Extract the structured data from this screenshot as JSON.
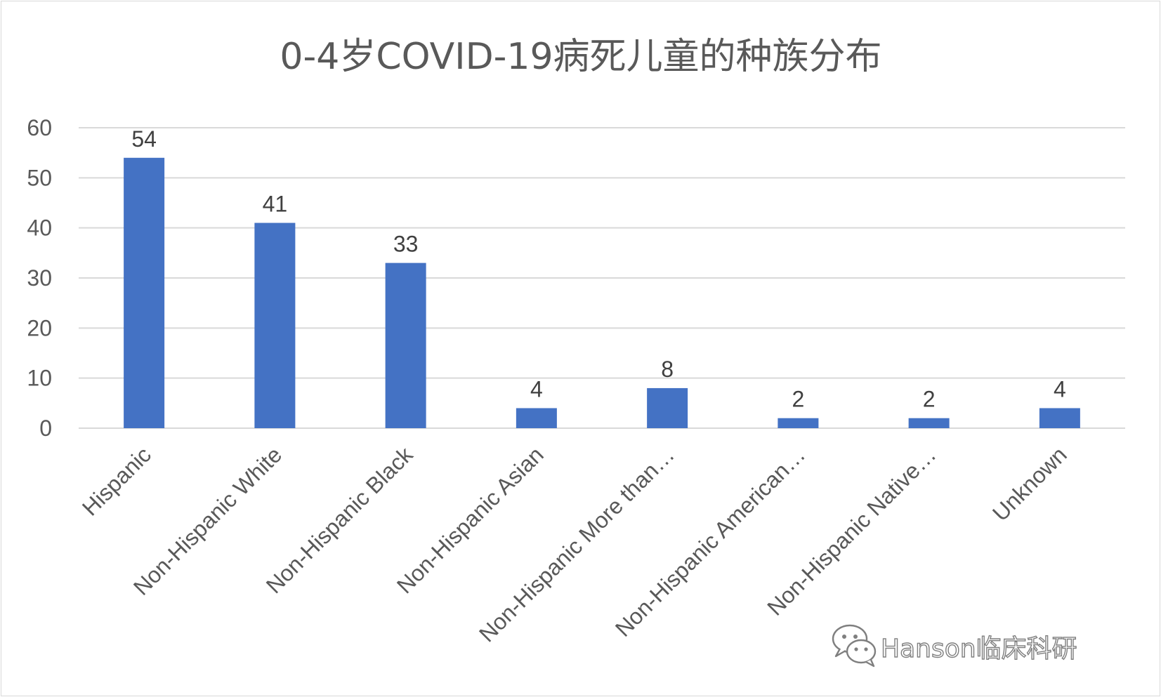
{
  "chart_data": {
    "type": "bar",
    "title": "0-4岁COVID-19病死儿童的种族分布",
    "categories": [
      "Hispanic",
      "Non-Hispanic White",
      "Non-Hispanic Black",
      "Non-Hispanic Asian",
      "Non-Hispanic More than…",
      "Non-Hispanic American…",
      "Non-Hispanic Native…",
      "Unknown"
    ],
    "values": [
      54,
      41,
      33,
      4,
      8,
      2,
      2,
      4
    ],
    "data_labels": [
      "54",
      "41",
      "33",
      "4",
      "8",
      "2",
      "2",
      "4"
    ],
    "yticks": [
      "0",
      "10",
      "20",
      "30",
      "40",
      "50",
      "60"
    ],
    "ylim": [
      0,
      60
    ],
    "xlabel": "",
    "ylabel": "",
    "grid": true,
    "legend": "none",
    "bar_color": "#4472c4"
  },
  "watermark": {
    "text": "Hanson临床科研",
    "icon": "wechat-icon"
  }
}
